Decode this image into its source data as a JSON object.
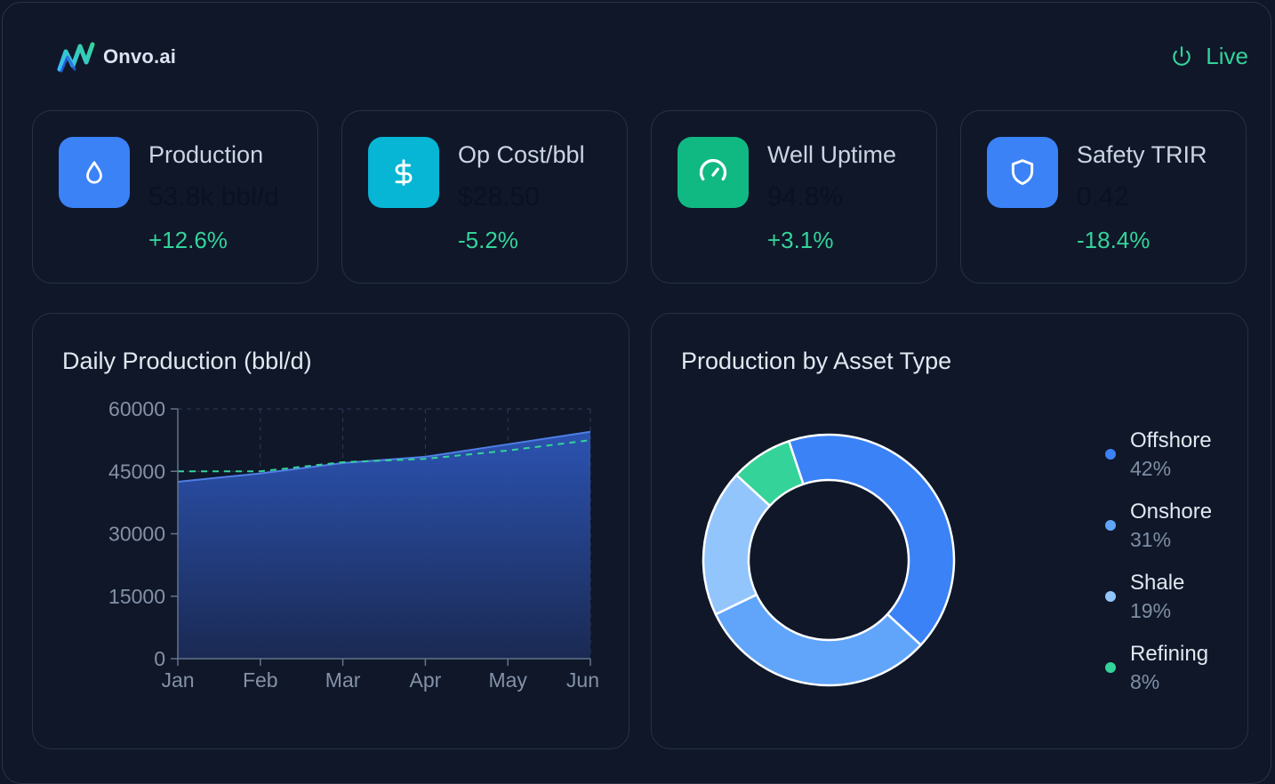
{
  "brand": {
    "name": "Onvo.ai",
    "icon": "onvo-logo-icon"
  },
  "status": {
    "label": "Live",
    "icon": "power-icon",
    "color": "#34d399"
  },
  "kpis": [
    {
      "label": "Production",
      "value": "53.8k bbl/d",
      "change": "+12.6%",
      "icon": "droplet-icon",
      "color": "#3b82f6"
    },
    {
      "label": "Op Cost/bbl",
      "value": "$28.50",
      "change": "-5.2%",
      "icon": "dollar-icon",
      "color": "#06b6d4"
    },
    {
      "label": "Well Uptime",
      "value": "94.8%",
      "change": "+3.1%",
      "icon": "gauge-icon",
      "color": "#10b981"
    },
    {
      "label": "Safety TRIR",
      "value": "0.42",
      "change": "-18.4%",
      "icon": "shield-icon",
      "color": "#3b82f6"
    }
  ],
  "production_chart": {
    "title": "Daily Production (bbl/d)",
    "chart_data": {
      "type": "area",
      "categories": [
        "Jan",
        "Feb",
        "Mar",
        "Apr",
        "May",
        "Jun"
      ],
      "series": [
        {
          "values": [
            42500,
            44500,
            47000,
            48500,
            51500,
            54500
          ],
          "color": "#4f7fe6"
        },
        {
          "values": [
            45000,
            45000,
            47200,
            48000,
            50000,
            52500
          ],
          "color": "#34d399",
          "dashed": true
        }
      ],
      "yticks": [
        0,
        15000,
        30000,
        45000,
        60000
      ],
      "ylim": [
        0,
        60000
      ],
      "grid": true
    }
  },
  "asset_chart": {
    "title": "Production by Asset Type",
    "chart_data": {
      "type": "pie",
      "donut": true,
      "slices": [
        {
          "name": "Offshore",
          "value": 42,
          "label": "42%",
          "color": "#3b82f6"
        },
        {
          "name": "Onshore",
          "value": 31,
          "label": "31%",
          "color": "#60a5fa"
        },
        {
          "name": "Shale",
          "value": 19,
          "label": "19%",
          "color": "#93c5fd"
        },
        {
          "name": "Refining",
          "value": 8,
          "label": "8%",
          "color": "#34d399"
        }
      ]
    }
  }
}
